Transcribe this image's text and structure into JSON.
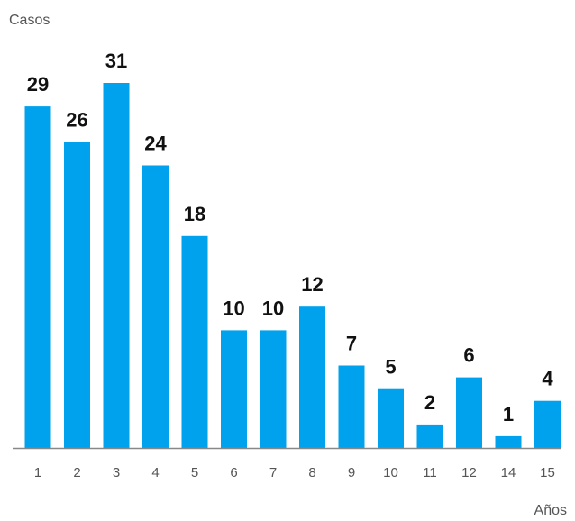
{
  "chart_data": {
    "type": "bar",
    "ylabel": "Casos",
    "xlabel": "Años",
    "categories": [
      "1",
      "2",
      "3",
      "4",
      "5",
      "6",
      "7",
      "8",
      "9",
      "10",
      "11",
      "12",
      "14",
      "15"
    ],
    "values": [
      29,
      26,
      31,
      24,
      18,
      10,
      10,
      12,
      7,
      5,
      2,
      6,
      1,
      4
    ],
    "ylim": [
      0,
      31
    ],
    "grid": false,
    "bar_color": "#00a2ed",
    "baseline_color": "#888888",
    "label_color": "#111111"
  }
}
